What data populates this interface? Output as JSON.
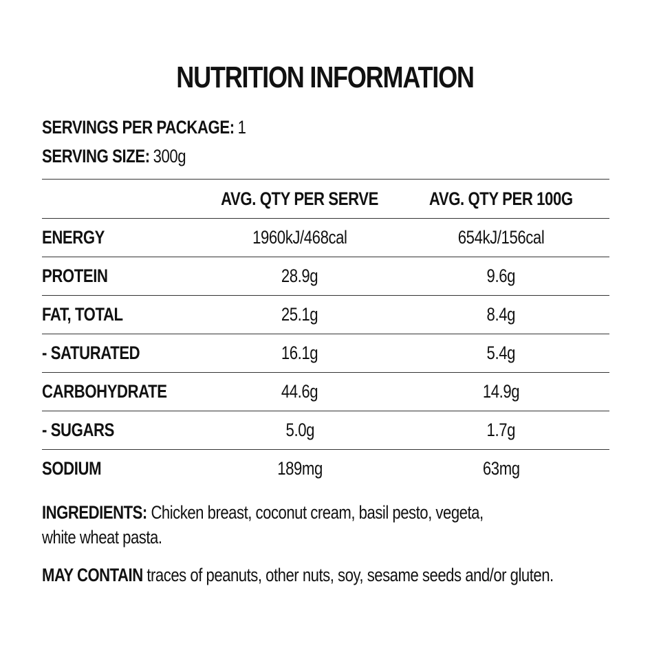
{
  "title": "NUTRITION INFORMATION",
  "servings": {
    "per_package_label": "SERVINGS PER PACKAGE:",
    "per_package_value": "1",
    "size_label": "SERVING SIZE:",
    "size_value": "300g"
  },
  "table": {
    "columns": [
      "",
      "AVG. QTY PER SERVE",
      "AVG. QTY PER 100G"
    ],
    "rows": [
      {
        "label": "ENERGY",
        "per_serve": "1960kJ/468cal",
        "per_100g": "654kJ/156cal"
      },
      {
        "label": "PROTEIN",
        "per_serve": "28.9g",
        "per_100g": "9.6g"
      },
      {
        "label": "FAT, TOTAL",
        "per_serve": "25.1g",
        "per_100g": "8.4g"
      },
      {
        "label": "- SATURATED",
        "per_serve": "16.1g",
        "per_100g": "5.4g"
      },
      {
        "label": "CARBOHYDRATE",
        "per_serve": "44.6g",
        "per_100g": "14.9g"
      },
      {
        "label": "- SUGARS",
        "per_serve": "5.0g",
        "per_100g": "1.7g"
      },
      {
        "label": "SODIUM",
        "per_serve": "189mg",
        "per_100g": "63mg"
      }
    ]
  },
  "ingredients": {
    "label": "INGREDIENTS:",
    "line1": "Chicken breast, coconut cream, basil pesto, vegeta,",
    "line2": "white wheat pasta."
  },
  "may_contain": {
    "label": "MAY CONTAIN",
    "text": "traces of peanuts, other nuts, soy, sesame seeds and/or gluten."
  }
}
